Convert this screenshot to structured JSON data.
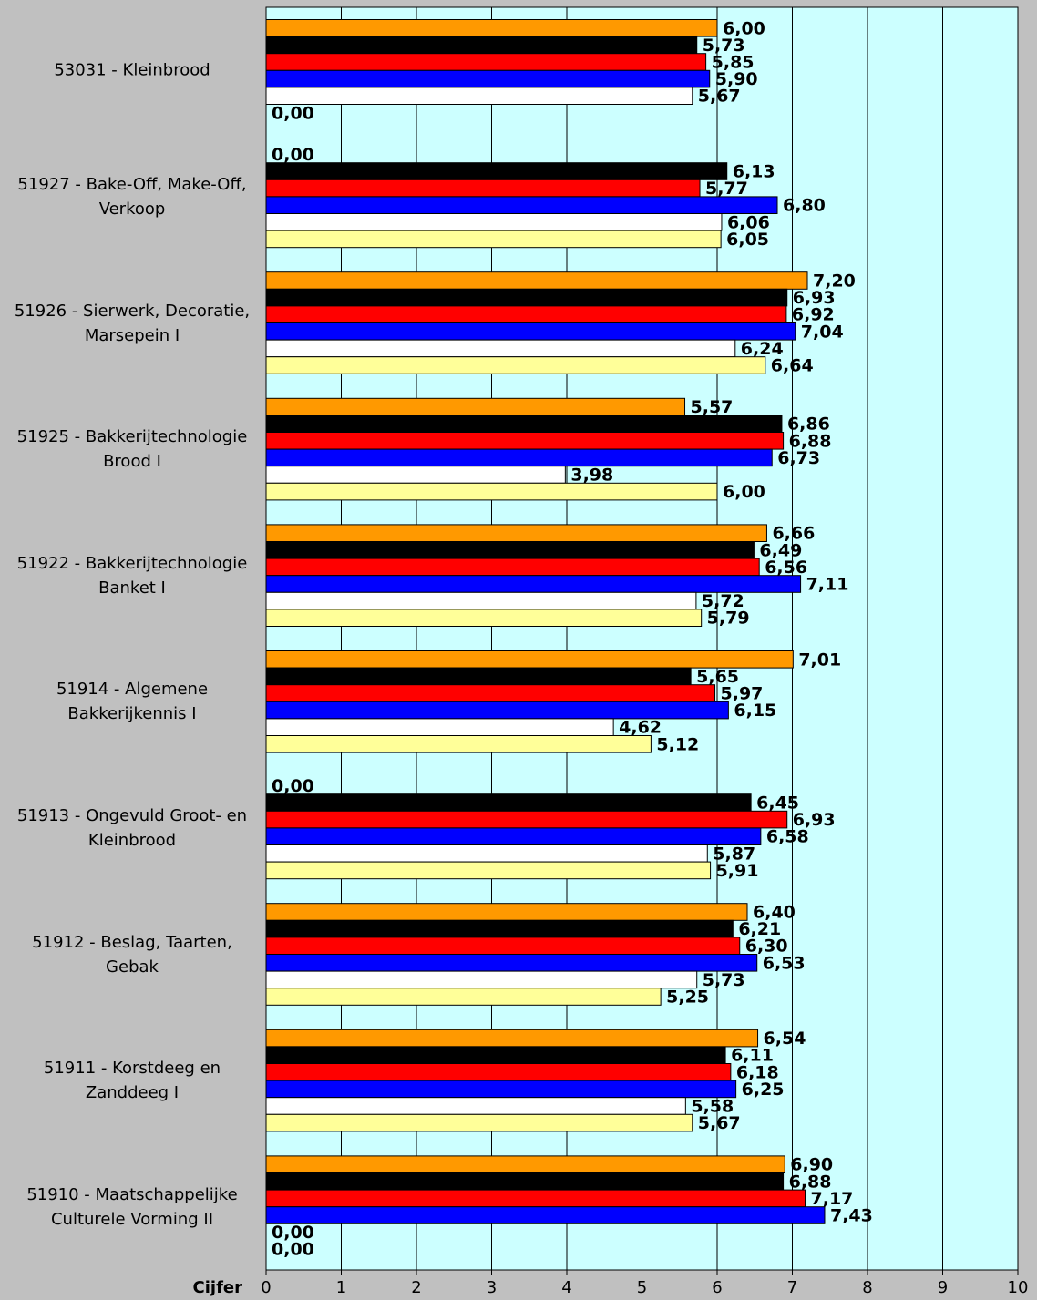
{
  "chart_data": {
    "type": "barh",
    "xlabel": "Cijfer",
    "categories": [
      "53031 - Kleinbrood",
      "51927 - Bake-Off, Make-Off, Verkoop",
      "51926 - Sierwerk, Decoratie, Marsepein I",
      "51925 - Bakkerijtechnologie Brood I",
      "51922 - Bakkerijtechnologie Banket I",
      "51914 - Algemene Bakkerijkennis I",
      "51913 - Ongevuld Groot- en Kleinbrood",
      "51912 - Beslag, Taarten, Gebak",
      "51911 - Korstdeeg en Zanddeeg I",
      "51910 - Maatschappelijke Culturele Vorming II"
    ],
    "series": [
      {
        "color": "#ff9900",
        "values": [
          6.0,
          0.0,
          7.2,
          5.57,
          6.66,
          7.01,
          0.0,
          6.4,
          6.54,
          6.9
        ],
        "value_labels": [
          "6,00",
          "0,00",
          "7,20",
          "5,57",
          "6,66",
          "7,01",
          "0,00",
          "6,40",
          "6,54",
          "6,90"
        ]
      },
      {
        "color": "#000000",
        "values": [
          5.73,
          6.13,
          6.93,
          6.86,
          6.49,
          5.65,
          6.45,
          6.21,
          6.11,
          6.88
        ],
        "value_labels": [
          "5,73",
          "6,13",
          "6,93",
          "6,86",
          "6,49",
          "5,65",
          "6,45",
          "6,21",
          "6,11",
          "6,88"
        ]
      },
      {
        "color": "#ff0000",
        "values": [
          5.85,
          5.77,
          6.92,
          6.88,
          6.56,
          5.97,
          6.93,
          6.3,
          6.18,
          7.17
        ],
        "value_labels": [
          "5,85",
          "5,77",
          "6,92",
          "6,88",
          "6,56",
          "5,97",
          "6,93",
          "6,30",
          "6,18",
          "7,17"
        ]
      },
      {
        "color": "#0000ff",
        "values": [
          5.9,
          6.8,
          7.04,
          6.73,
          7.11,
          6.15,
          6.58,
          6.53,
          6.25,
          7.43
        ],
        "value_labels": [
          "5,90",
          "6,80",
          "7,04",
          "6,73",
          "7,11",
          "6,15",
          "6,58",
          "6,53",
          "6,25",
          "7,43"
        ]
      },
      {
        "color": "#ffffff",
        "values": [
          5.67,
          6.06,
          6.24,
          3.98,
          5.72,
          4.62,
          5.87,
          5.73,
          5.58,
          0.0
        ],
        "value_labels": [
          "5,67",
          "6,06",
          "6,24",
          "3,98",
          "5,72",
          "4,62",
          "5,87",
          "5,73",
          "5,58",
          "0,00"
        ]
      },
      {
        "color": "#ffff99",
        "values": [
          0.0,
          6.05,
          6.64,
          6.0,
          5.79,
          5.12,
          5.91,
          5.25,
          5.67,
          0.0
        ],
        "value_labels": [
          "0,00",
          "6,05",
          "6,64",
          "6,00",
          "5,79",
          "5,12",
          "5,91",
          "5,25",
          "5,67",
          "0,00"
        ]
      }
    ],
    "xlim": [
      0,
      10
    ],
    "xticks": [
      0,
      1,
      2,
      3,
      4,
      5,
      6,
      7,
      8,
      9,
      10
    ],
    "grid": true
  }
}
